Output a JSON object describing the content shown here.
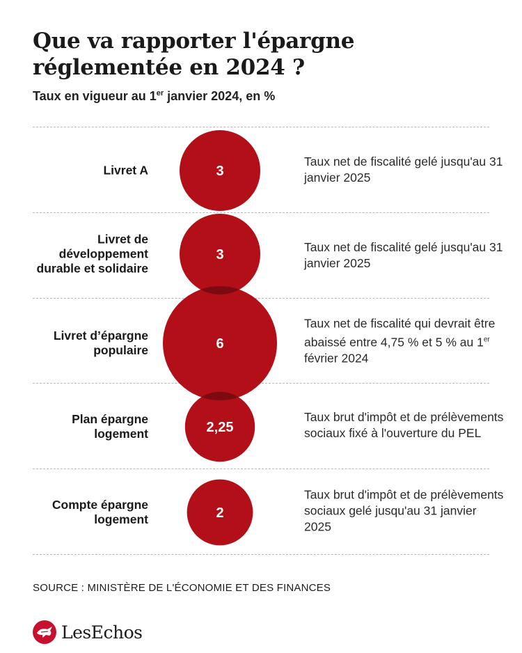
{
  "title": "Que va rapporter l'épargne réglementée en 2024 ?",
  "subtitle": {
    "before": "Taux en vigueur au 1",
    "sup": "er",
    "after": " janvier 2024, en %"
  },
  "colors": {
    "bubble": "#b30f18",
    "bubble_overlap": "#7d0a10",
    "logo_red": "#c8102e"
  },
  "rows": [
    {
      "label": "Livret A",
      "value_label": "3",
      "note": "Taux net de fiscalité gelé jusqu'au 31 janvier 2025"
    },
    {
      "label": "Livret de développement durable et solidaire",
      "value_label": "3",
      "note": "Taux net de fiscalité gelé jusqu'au 31 janvier 2025"
    },
    {
      "label": "Livret d’épargne populaire",
      "value_label": "6",
      "note_before": "Taux net de fiscalité qui devrait être abaissé entre 4,75 % et 5 % au 1",
      "note_sup": "er",
      "note_after": " février 2024"
    },
    {
      "label": "Plan épargne logement",
      "value_label": "2,25",
      "note": "Taux brut d'impôt et de prélèvements sociaux fixé à l'ouverture du PEL"
    },
    {
      "label": "Compte épargne logement",
      "value_label": "2",
      "note": "Taux brut d'impôt et de prélèvements sociaux gelé jusqu'au 31 janvier 2025"
    }
  ],
  "chart_data": {
    "type": "bubble",
    "title": "Que va rapporter l'épargne réglementée en 2024 ?",
    "subtitle": "Taux en vigueur au 1er janvier 2024, en %",
    "categories": [
      "Livret A",
      "Livret de développement durable et solidaire",
      "Livret d’épargne populaire",
      "Plan épargne logement",
      "Compte épargne logement"
    ],
    "values": [
      3,
      3,
      6,
      2.25,
      2
    ],
    "unit": "%"
  },
  "source": "SOURCE : MINISTÈRE DE L'ÉCONOMIE ET DES FINANCES",
  "logo": {
    "text": "LesEchos",
    "icon": "les-echos-logo-icon"
  }
}
